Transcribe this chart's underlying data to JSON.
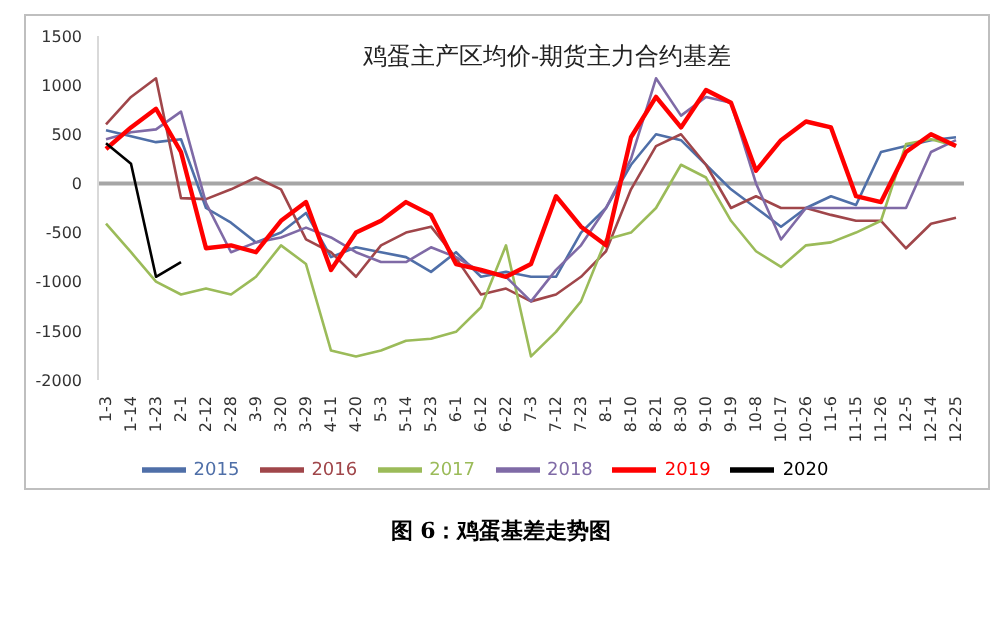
{
  "chart_data": {
    "type": "line",
    "title": "鸡蛋主产区均价-期货主力合约基差",
    "categories": [
      "1-3",
      "1-14",
      "1-23",
      "2-1",
      "2-12",
      "2-28",
      "3-9",
      "3-20",
      "3-29",
      "4-11",
      "4-20",
      "5-3",
      "5-14",
      "5-23",
      "6-1",
      "6-12",
      "6-22",
      "7-3",
      "7-12",
      "7-23",
      "8-1",
      "8-10",
      "8-21",
      "8-30",
      "9-10",
      "9-19",
      "10-8",
      "10-17",
      "10-26",
      "11-6",
      "11-15",
      "11-26",
      "12-5",
      "12-14",
      "12-25"
    ],
    "series": [
      {
        "name": "2015",
        "color": "#4f6fa8",
        "values": [
          540,
          480,
          420,
          450,
          -250,
          -400,
          -600,
          -500,
          -300,
          -750,
          -650,
          -700,
          -750,
          -900,
          -700,
          -950,
          -900,
          -950,
          -950,
          -500,
          -250,
          190,
          500,
          440,
          190,
          -60,
          -250,
          -440,
          -250,
          -130,
          -220,
          320,
          380,
          440,
          470
        ]
      },
      {
        "name": "2016",
        "color": "#a0464a",
        "values": [
          600,
          880,
          1070,
          -150,
          -160,
          -60,
          60,
          -60,
          -570,
          -700,
          -950,
          -630,
          -500,
          -440,
          -760,
          -1130,
          -1070,
          -1200,
          -1130,
          -950,
          -690,
          -60,
          380,
          500,
          190,
          -250,
          -130,
          -250,
          -250,
          -320,
          -380,
          -380,
          -660,
          -410,
          -350
        ]
      },
      {
        "name": "2017",
        "color": "#9bbb59",
        "values": [
          -410,
          -700,
          -1000,
          -1130,
          -1070,
          -1130,
          -950,
          -630,
          -820,
          -1700,
          -1760,
          -1700,
          -1600,
          -1580,
          -1510,
          -1260,
          -630,
          -1760,
          -1510,
          -1200,
          -570,
          -500,
          -250,
          190,
          60,
          -380,
          -690,
          -850,
          -630,
          -600,
          -500,
          -380,
          400,
          450,
          380
        ]
      },
      {
        "name": "2018",
        "color": "#7f6aa6",
        "values": [
          450,
          520,
          550,
          730,
          -200,
          -700,
          -600,
          -550,
          -450,
          -550,
          -700,
          -800,
          -800,
          -650,
          -750,
          -900,
          -950,
          -1200,
          -880,
          -630,
          -250,
          250,
          1070,
          690,
          880,
          820,
          0,
          -570,
          -250,
          -250,
          -250,
          -250,
          -250,
          320,
          440
        ]
      },
      {
        "name": "2019",
        "color": "#ff0000",
        "values": [
          350,
          570,
          760,
          320,
          -660,
          -630,
          -700,
          -380,
          -190,
          -880,
          -500,
          -380,
          -190,
          -320,
          -820,
          -880,
          -950,
          -820,
          -130,
          -440,
          -630,
          470,
          880,
          570,
          950,
          820,
          130,
          440,
          630,
          570,
          -130,
          -190,
          320,
          500,
          380
        ]
      },
      {
        "name": "2020",
        "color": "#000000",
        "values": [
          410,
          200,
          -950,
          -800,
          null,
          null,
          null,
          null,
          null,
          null,
          null,
          null,
          null,
          null,
          null,
          null,
          null,
          null,
          null,
          null,
          null,
          null,
          null,
          null,
          null,
          null,
          null,
          null,
          null,
          null,
          null,
          null,
          null,
          null,
          null
        ]
      }
    ],
    "ylim": [
      -2000,
      1500
    ],
    "yticks": [
      -2000,
      -1500,
      -1000,
      -500,
      0,
      500,
      1000,
      1500
    ],
    "ref_lines": [
      {
        "axis": "y",
        "value": 0,
        "color": "#a6a6a6"
      }
    ],
    "grid": false,
    "legend": "bottom",
    "marker": "none",
    "line_style": "solid",
    "annotations": [
      "图 6：鸡蛋基差走势图"
    ]
  }
}
